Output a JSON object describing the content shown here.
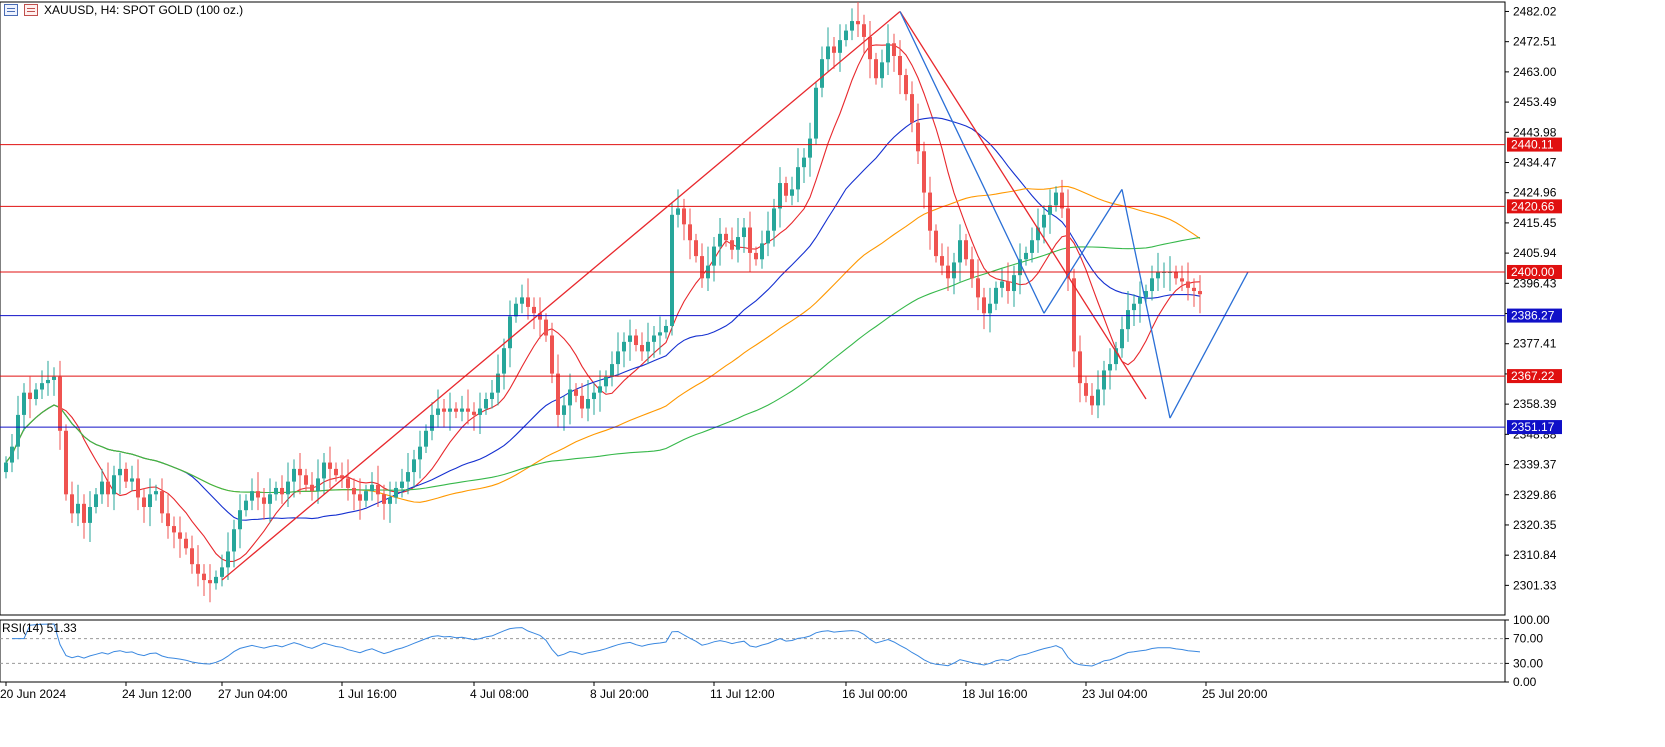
{
  "header": {
    "symbol_label": "XAUUSD, H4:  SPOT GOLD (100 oz.)",
    "icons": [
      "chart-grid-icon",
      "chart-properties-icon"
    ]
  },
  "chart_data": {
    "type": "candlestick",
    "symbol": "XAUUSD",
    "timeframe": "H4",
    "price_axis": {
      "range": [
        2292,
        2485
      ],
      "tick_labels": [
        "2482.02",
        "2472.51",
        "2463.00",
        "2453.49",
        "2443.98",
        "2434.47",
        "2424.96",
        "2415.45",
        "2405.94",
        "2396.43",
        "2386.92",
        "2377.41",
        "2367.90",
        "2358.39",
        "2348.88",
        "2339.37",
        "2329.86",
        "2320.35",
        "2310.84",
        "2301.33"
      ]
    },
    "time_axis": {
      "labels": [
        "20 Jun 2024",
        "24 Jun 12:00",
        "27 Jun 04:00",
        "1 Jul 16:00",
        "4 Jul 08:00",
        "8 Jul 20:00",
        "11 Jul 12:00",
        "16 Jul 00:00",
        "18 Jul 16:00",
        "23 Jul 04:00",
        "25 Jul 20:00"
      ],
      "label_candle_index": [
        0,
        20,
        36,
        56,
        78,
        98,
        118,
        140,
        160,
        180,
        200
      ]
    },
    "horizontal_levels": [
      {
        "price": 2440.11,
        "label": "2440.11",
        "color": "#e01010"
      },
      {
        "price": 2420.66,
        "label": "2420.66",
        "color": "#e01010"
      },
      {
        "price": 2400.0,
        "label": "2400.00",
        "color": "#e01010"
      },
      {
        "price": 2386.27,
        "label": "2386.27",
        "color": "#1010c8"
      },
      {
        "price": 2367.22,
        "label": "2367.22",
        "color": "#e01010"
      },
      {
        "price": 2351.17,
        "label": "2351.17",
        "color": "#1010c8"
      }
    ],
    "candle_colors": {
      "up": "#26a69a",
      "down": "#ef5350"
    },
    "candles": {
      "count": 210,
      "close": [
        2340,
        2345,
        2355,
        2362,
        2360,
        2363,
        2365,
        2366,
        2367,
        2350,
        2330,
        2324,
        2327,
        2321,
        2326,
        2330,
        2334,
        2330,
        2336,
        2338,
        2334,
        2335,
        2329,
        2326,
        2330,
        2331,
        2324,
        2320,
        2318,
        2316,
        2313,
        2308,
        2305,
        2303,
        2302,
        2304,
        2307,
        2312,
        2319,
        2325,
        2328,
        2331,
        2329,
        2327,
        2330,
        2332,
        2330,
        2334,
        2338,
        2336,
        2333,
        2331,
        2335,
        2340,
        2338,
        2336,
        2335,
        2332,
        2330,
        2328,
        2331,
        2333,
        2330,
        2327,
        2329,
        2332,
        2334,
        2337,
        2341,
        2345,
        2350,
        2355,
        2357,
        2356,
        2357,
        2356,
        2357,
        2356,
        2355,
        2357,
        2360,
        2362,
        2368,
        2376,
        2386,
        2390,
        2392,
        2389,
        2387,
        2385,
        2380,
        2368,
        2355,
        2358,
        2363,
        2361,
        2357,
        2360,
        2362,
        2364,
        2367,
        2371,
        2375,
        2378,
        2380,
        2377,
        2375,
        2378,
        2380,
        2381,
        2383,
        2418,
        2420,
        2415,
        2410,
        2405,
        2398,
        2402,
        2408,
        2412,
        2410,
        2407,
        2411,
        2414,
        2406,
        2404,
        2409,
        2413,
        2420,
        2428,
        2424,
        2426,
        2433,
        2436,
        2442,
        2458,
        2467,
        2471,
        2469,
        2473,
        2476,
        2479,
        2478,
        2474,
        2467,
        2461,
        2466,
        2472,
        2468,
        2462,
        2456,
        2447,
        2438,
        2425,
        2413,
        2405,
        2402,
        2398,
        2403,
        2410,
        2404,
        2398,
        2392,
        2387,
        2390,
        2395,
        2397,
        2394,
        2399,
        2404,
        2406,
        2410,
        2414,
        2418,
        2421,
        2425,
        2420,
        2398,
        2375,
        2365,
        2361,
        2358,
        2363,
        2369,
        2371,
        2376,
        2382,
        2388,
        2390,
        2392,
        2394,
        2398,
        2400,
        2400,
        2400,
        2398,
        2397,
        2395,
        2394,
        2393
      ],
      "ohlc_note": "approximate 4-hour closes read from the plot"
    },
    "moving_averages": [
      {
        "color": "#e8282d",
        "period": 10
      },
      {
        "color": "#1530d0",
        "period": 30
      },
      {
        "color": "#ff9800",
        "period": 60
      },
      {
        "color": "#36b84a",
        "period": 100
      }
    ],
    "trend_lines": [
      {
        "color": "#e8282d",
        "from": [
          36,
          2303
        ],
        "to": [
          149,
          2482
        ]
      },
      {
        "color": "#e8282d",
        "from": [
          149,
          2482
        ],
        "to": [
          190,
          2360
        ]
      },
      {
        "color": "#2a6fd6",
        "from": [
          149,
          2482
        ],
        "to": [
          173,
          2387
        ]
      },
      {
        "color": "#2a6fd6",
        "from": [
          173,
          2387
        ],
        "to": [
          186,
          2426
        ]
      },
      {
        "color": "#2a6fd6",
        "from": [
          186,
          2426
        ],
        "to": [
          194,
          2354
        ]
      },
      {
        "color": "#2a6fd6",
        "from": [
          194,
          2354
        ],
        "to": [
          207,
          2400
        ]
      }
    ],
    "rsi": {
      "label": "RSI(14) 51.33",
      "period": 14,
      "value": 51.33,
      "axis_labels": [
        "100.00",
        "70.00",
        "30.00",
        "0.00"
      ],
      "levels": [
        70,
        30
      ],
      "line_color": "#3a88e0"
    }
  }
}
